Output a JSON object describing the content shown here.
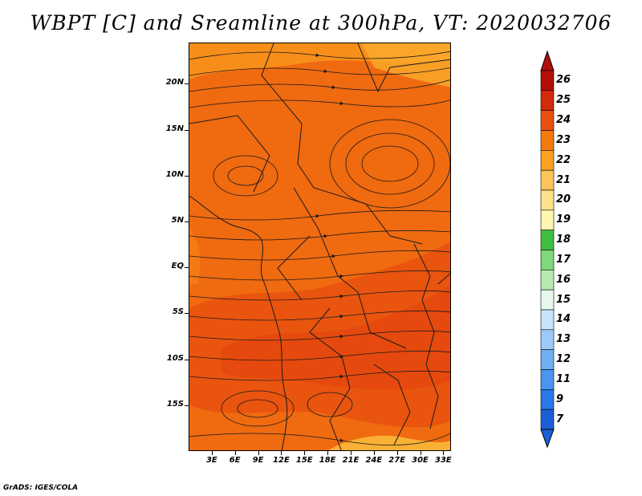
{
  "title": "WBPT [C] and Sreamline at 300hPa, VT: 2020032706",
  "footer": "GrADS: IGES/COLA",
  "map": {
    "lat_labels": [
      "20N",
      "15N",
      "10N",
      "5N",
      "EQ",
      "5S",
      "10S",
      "15S"
    ],
    "lat_values": [
      20,
      15,
      10,
      5,
      0,
      -5,
      -10,
      -15
    ],
    "lon_labels": [
      "3E",
      "6E",
      "9E",
      "12E",
      "15E",
      "18E",
      "21E",
      "24E",
      "27E",
      "30E",
      "33E"
    ],
    "lon_values": [
      3,
      6,
      9,
      12,
      15,
      18,
      21,
      24,
      27,
      30,
      33
    ],
    "lon_range": [
      0,
      34
    ],
    "lat_range": [
      -20,
      24.5
    ],
    "base_color": "#f06a10"
  },
  "colorbar": {
    "labels": [
      "7",
      "9",
      "11",
      "12",
      "13",
      "14",
      "15",
      "16",
      "17",
      "18",
      "19",
      "20",
      "21",
      "22",
      "23",
      "24",
      "25",
      "26"
    ],
    "colors": [
      "#1a5fd6",
      "#2a78e8",
      "#4a95f0",
      "#6fb0f5",
      "#9ccaf8",
      "#c8e4fb",
      "#e8f7ee",
      "#b8eab0",
      "#7fd87a",
      "#3fbf3f",
      "#fdf6b0",
      "#fde28a",
      "#fcc45a",
      "#fba020",
      "#f47a10",
      "#e85010",
      "#d42a0c",
      "#b40e0a"
    ]
  }
}
